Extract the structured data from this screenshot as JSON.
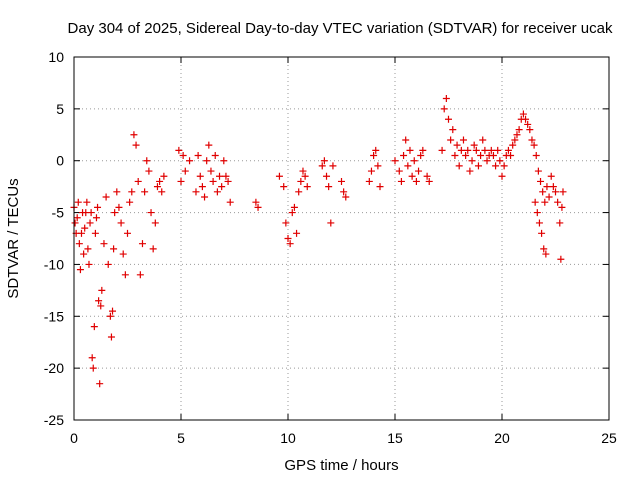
{
  "chart_data": {
    "type": "scatter",
    "title": "Day 304 of 2025, Sidereal Day-to-day VTEC variation (SDTVAR) for receiver ucak",
    "xlabel": "GPS time / hours",
    "ylabel": "SDTVAR / TECUs",
    "xlim": [
      0,
      25
    ],
    "ylim": [
      -25,
      10
    ],
    "xticks": [
      "0",
      "5",
      "10",
      "15",
      "20",
      "25"
    ],
    "yticks": [
      "10",
      "5",
      "0",
      "-5",
      "-10",
      "-15",
      "-20",
      "-25"
    ],
    "grid": true,
    "marker": "+",
    "color": "#e00000",
    "series": [
      {
        "name": "SDTVAR",
        "points": [
          [
            0.0,
            -4.5
          ],
          [
            0.05,
            -6.0
          ],
          [
            0.1,
            -7.0
          ],
          [
            0.15,
            -5.5
          ],
          [
            0.2,
            -4.0
          ],
          [
            0.25,
            -8.0
          ],
          [
            0.3,
            -10.5
          ],
          [
            0.35,
            -7.0
          ],
          [
            0.4,
            -5.0
          ],
          [
            0.45,
            -9.0
          ],
          [
            0.5,
            -6.5
          ],
          [
            0.55,
            -5.0
          ],
          [
            0.6,
            -4.0
          ],
          [
            0.65,
            -8.5
          ],
          [
            0.7,
            -10.0
          ],
          [
            0.75,
            -6.0
          ],
          [
            0.8,
            -5.0
          ],
          [
            0.85,
            -19.0
          ],
          [
            0.9,
            -20.0
          ],
          [
            0.95,
            -16.0
          ],
          [
            1.0,
            -7.0
          ],
          [
            1.05,
            -5.5
          ],
          [
            1.1,
            -4.5
          ],
          [
            1.15,
            -13.5
          ],
          [
            1.2,
            -21.5
          ],
          [
            1.25,
            -14.0
          ],
          [
            1.3,
            -12.5
          ],
          [
            1.4,
            -8.0
          ],
          [
            1.5,
            -3.5
          ],
          [
            1.6,
            -10.0
          ],
          [
            1.7,
            -15.0
          ],
          [
            1.75,
            -17.0
          ],
          [
            1.8,
            -14.5
          ],
          [
            1.85,
            -8.5
          ],
          [
            1.9,
            -5.0
          ],
          [
            2.0,
            -3.0
          ],
          [
            2.1,
            -4.5
          ],
          [
            2.2,
            -6.0
          ],
          [
            2.3,
            -9.0
          ],
          [
            2.4,
            -11.0
          ],
          [
            2.5,
            -7.0
          ],
          [
            2.6,
            -4.0
          ],
          [
            2.7,
            -3.0
          ],
          [
            2.8,
            2.5
          ],
          [
            2.9,
            1.5
          ],
          [
            3.0,
            -2.0
          ],
          [
            3.1,
            -11.0
          ],
          [
            3.2,
            -8.0
          ],
          [
            3.3,
            -3.0
          ],
          [
            3.4,
            0.0
          ],
          [
            3.5,
            -1.0
          ],
          [
            3.6,
            -5.0
          ],
          [
            3.7,
            -8.5
          ],
          [
            3.8,
            -6.0
          ],
          [
            3.9,
            -2.5
          ],
          [
            4.0,
            -2.0
          ],
          [
            4.1,
            -3.0
          ],
          [
            4.2,
            -1.5
          ],
          [
            4.9,
            1.0
          ],
          [
            5.0,
            -2.0
          ],
          [
            5.1,
            0.5
          ],
          [
            5.2,
            -1.0
          ],
          [
            5.4,
            0.0
          ],
          [
            5.7,
            -3.0
          ],
          [
            5.8,
            0.5
          ],
          [
            5.9,
            -1.5
          ],
          [
            6.0,
            -2.5
          ],
          [
            6.1,
            -3.5
          ],
          [
            6.2,
            0.0
          ],
          [
            6.3,
            1.5
          ],
          [
            6.4,
            -1.0
          ],
          [
            6.5,
            -2.0
          ],
          [
            6.6,
            0.5
          ],
          [
            6.7,
            -3.0
          ],
          [
            6.8,
            -1.5
          ],
          [
            6.9,
            -2.5
          ],
          [
            7.0,
            0.0
          ],
          [
            7.1,
            -1.5
          ],
          [
            7.2,
            -2.0
          ],
          [
            7.3,
            -4.0
          ],
          [
            8.5,
            -4.0
          ],
          [
            8.6,
            -4.5
          ],
          [
            9.6,
            -1.5
          ],
          [
            9.8,
            -2.5
          ],
          [
            9.9,
            -6.0
          ],
          [
            10.0,
            -7.5
          ],
          [
            10.1,
            -8.0
          ],
          [
            10.2,
            -5.0
          ],
          [
            10.3,
            -4.5
          ],
          [
            10.4,
            -7.0
          ],
          [
            10.5,
            -3.0
          ],
          [
            10.6,
            -2.0
          ],
          [
            10.7,
            -1.0
          ],
          [
            10.8,
            -1.5
          ],
          [
            10.9,
            -2.5
          ],
          [
            11.6,
            -0.5
          ],
          [
            11.7,
            0.0
          ],
          [
            11.8,
            -1.5
          ],
          [
            11.9,
            -2.5
          ],
          [
            12.0,
            -6.0
          ],
          [
            12.1,
            -0.5
          ],
          [
            12.5,
            -2.0
          ],
          [
            12.6,
            -3.0
          ],
          [
            12.7,
            -3.5
          ],
          [
            13.8,
            -2.0
          ],
          [
            13.9,
            -1.0
          ],
          [
            14.0,
            0.5
          ],
          [
            14.1,
            1.0
          ],
          [
            14.2,
            -0.5
          ],
          [
            14.3,
            -2.5
          ],
          [
            15.0,
            0.0
          ],
          [
            15.2,
            -1.0
          ],
          [
            15.3,
            -2.0
          ],
          [
            15.4,
            0.5
          ],
          [
            15.5,
            2.0
          ],
          [
            15.6,
            -0.5
          ],
          [
            15.7,
            1.0
          ],
          [
            15.8,
            -1.5
          ],
          [
            15.9,
            0.0
          ],
          [
            16.0,
            -2.0
          ],
          [
            16.1,
            -1.0
          ],
          [
            16.2,
            0.5
          ],
          [
            16.3,
            1.0
          ],
          [
            16.5,
            -1.5
          ],
          [
            16.6,
            -2.0
          ],
          [
            17.2,
            1.0
          ],
          [
            17.3,
            5.0
          ],
          [
            17.4,
            6.0
          ],
          [
            17.5,
            4.0
          ],
          [
            17.6,
            2.0
          ],
          [
            17.7,
            3.0
          ],
          [
            17.8,
            0.5
          ],
          [
            17.9,
            1.5
          ],
          [
            18.0,
            -0.5
          ],
          [
            18.1,
            1.0
          ],
          [
            18.2,
            2.0
          ],
          [
            18.3,
            0.5
          ],
          [
            18.4,
            1.0
          ],
          [
            18.5,
            -1.0
          ],
          [
            18.6,
            0.0
          ],
          [
            18.7,
            1.5
          ],
          [
            18.8,
            1.0
          ],
          [
            18.9,
            -0.5
          ],
          [
            19.0,
            0.5
          ],
          [
            19.1,
            2.0
          ],
          [
            19.2,
            1.0
          ],
          [
            19.3,
            0.0
          ],
          [
            19.4,
            0.5
          ],
          [
            19.5,
            1.0
          ],
          [
            19.6,
            0.5
          ],
          [
            19.7,
            -0.5
          ],
          [
            19.8,
            1.0
          ],
          [
            19.9,
            0.0
          ],
          [
            20.0,
            -1.5
          ],
          [
            20.1,
            -0.5
          ],
          [
            20.2,
            0.5
          ],
          [
            20.3,
            1.0
          ],
          [
            20.4,
            0.5
          ],
          [
            20.5,
            1.5
          ],
          [
            20.6,
            2.0
          ],
          [
            20.7,
            2.5
          ],
          [
            20.8,
            3.0
          ],
          [
            20.9,
            4.0
          ],
          [
            21.0,
            4.5
          ],
          [
            21.1,
            4.0
          ],
          [
            21.2,
            3.5
          ],
          [
            21.3,
            3.0
          ],
          [
            21.4,
            2.0
          ],
          [
            21.5,
            1.5
          ],
          [
            21.55,
            -4.0
          ],
          [
            21.6,
            0.5
          ],
          [
            21.65,
            -5.0
          ],
          [
            21.7,
            -1.0
          ],
          [
            21.75,
            -6.0
          ],
          [
            21.8,
            -2.0
          ],
          [
            21.85,
            -7.0
          ],
          [
            21.9,
            -3.0
          ],
          [
            21.95,
            -8.5
          ],
          [
            22.0,
            -4.0
          ],
          [
            22.05,
            -9.0
          ],
          [
            22.1,
            -2.5
          ],
          [
            22.2,
            -3.5
          ],
          [
            22.3,
            -1.5
          ],
          [
            22.4,
            -2.5
          ],
          [
            22.5,
            -3.0
          ],
          [
            22.6,
            -4.0
          ],
          [
            22.7,
            -6.0
          ],
          [
            22.75,
            -9.5
          ],
          [
            22.8,
            -4.5
          ],
          [
            22.85,
            -3.0
          ]
        ]
      }
    ]
  }
}
